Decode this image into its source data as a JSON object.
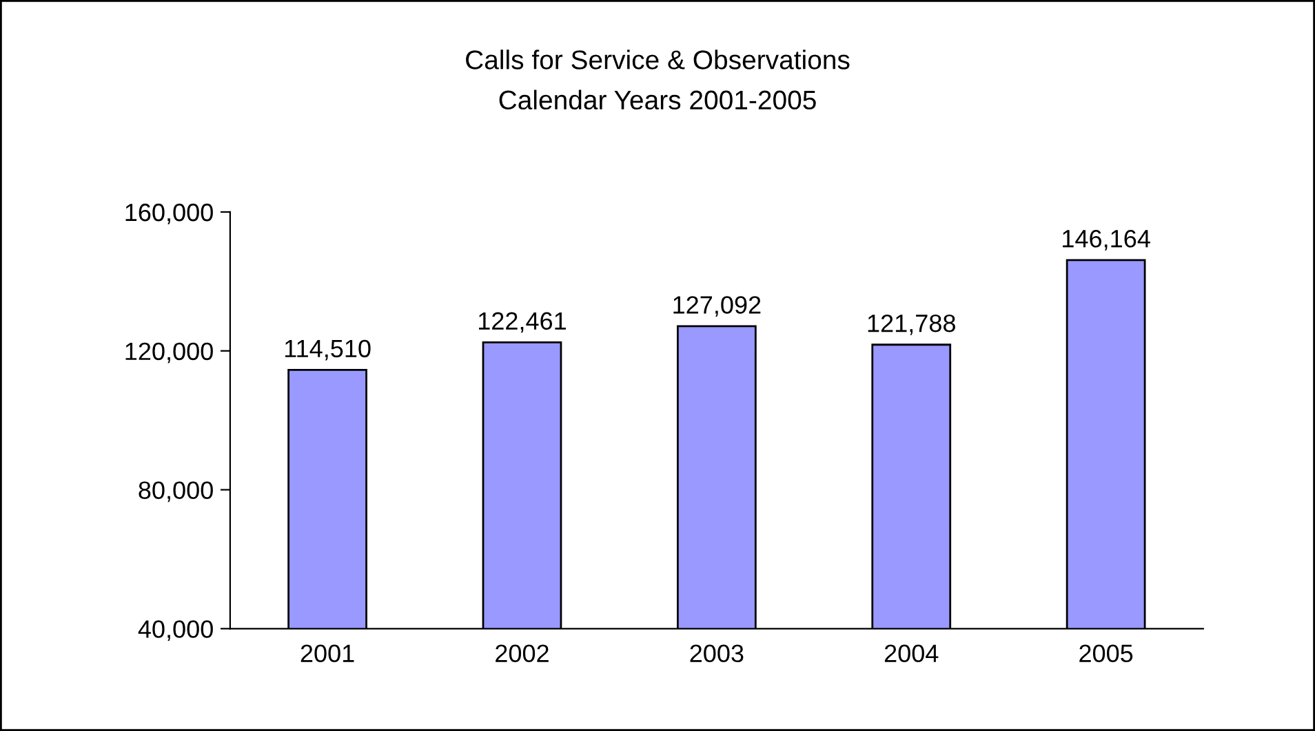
{
  "chart_data": {
    "type": "bar",
    "title": "Calls for Service & Observations",
    "subtitle": "Calendar Years 2001-2005",
    "categories": [
      "2001",
      "2002",
      "2003",
      "2004",
      "2005"
    ],
    "values": [
      114510,
      122461,
      127092,
      121788,
      146164
    ],
    "value_labels": [
      "114,510",
      "122,461",
      "127,092",
      "121,788",
      "146,164"
    ],
    "color": "#9999ff",
    "ylim": [
      40000,
      160000
    ],
    "yticks": [
      {
        "value": 40000,
        "label": "40,000"
      },
      {
        "value": 80000,
        "label": "80,000"
      },
      {
        "value": 120000,
        "label": "120,000"
      },
      {
        "value": 160000,
        "label": "160,000"
      }
    ],
    "grid": false,
    "legend": false
  }
}
